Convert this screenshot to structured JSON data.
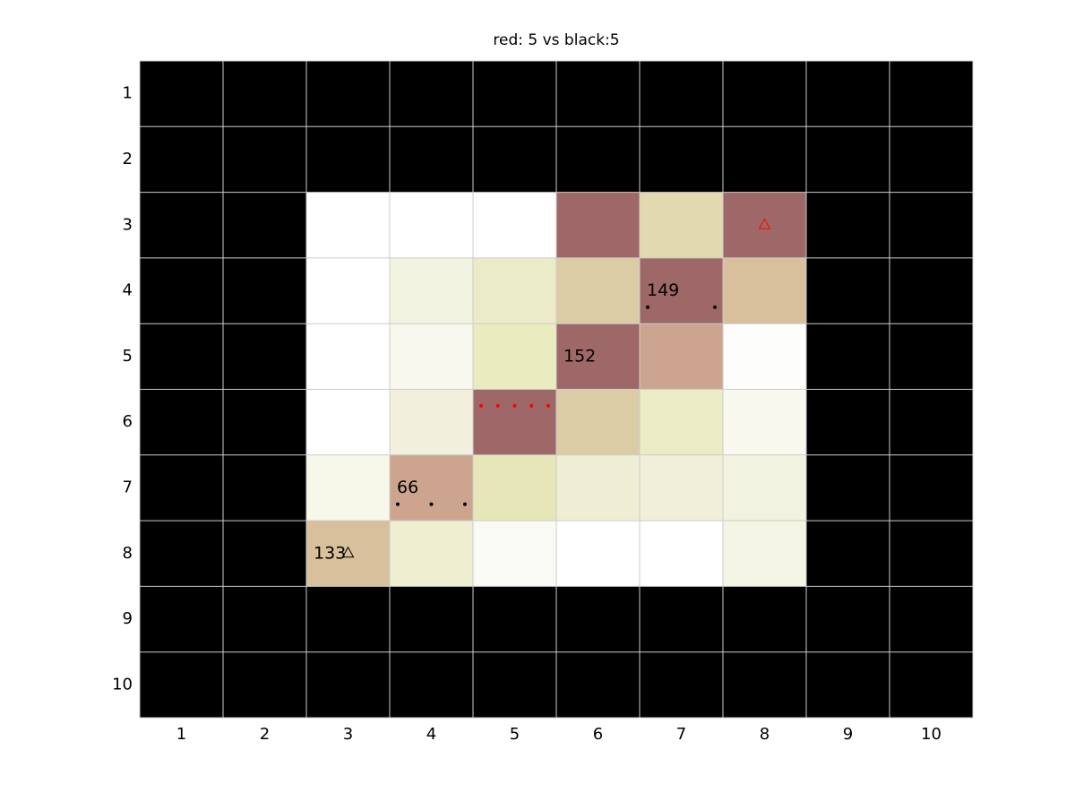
{
  "title": "red: 5 vs black:5",
  "xticks": [
    1,
    2,
    3,
    4,
    5,
    6,
    7,
    8,
    9,
    10
  ],
  "yticks": [
    1,
    2,
    3,
    4,
    5,
    6,
    7,
    8,
    9,
    10
  ],
  "grid_color": "#cccccc",
  "board": [
    [
      "#000000",
      "#000000",
      "#000000",
      "#000000",
      "#000000",
      "#000000",
      "#000000",
      "#000000",
      "#000000",
      "#000000"
    ],
    [
      "#000000",
      "#000000",
      "#000000",
      "#000000",
      "#000000",
      "#000000",
      "#000000",
      "#000000",
      "#000000",
      "#000000"
    ],
    [
      "#000000",
      "#000000",
      "#ffffff",
      "#ffffff",
      "#ffffff",
      "#9e6868",
      "#e3d9b0",
      "#9e6868",
      "#000000",
      "#000000"
    ],
    [
      "#000000",
      "#000000",
      "#ffffff",
      "#f3f3e2",
      "#ebebc8",
      "#dccca6",
      "#9e6868",
      "#d7c09b",
      "#000000",
      "#000000"
    ],
    [
      "#000000",
      "#000000",
      "#ffffff",
      "#f8f8ee",
      "#ebebc0",
      "#9e6868",
      "#cda58f",
      "#fdfdfb",
      "#000000",
      "#000000"
    ],
    [
      "#000000",
      "#000000",
      "#ffffff",
      "#f2f0dc",
      "#9e6868",
      "#dccca6",
      "#ebebc6",
      "#f8f8ee",
      "#000000",
      "#000000"
    ],
    [
      "#000000",
      "#000000",
      "#f7f7ea",
      "#cda58f",
      "#e6e6b9",
      "#eeeed4",
      "#f0f0da",
      "#f2f2e0",
      "#000000",
      "#000000"
    ],
    [
      "#000000",
      "#000000",
      "#d7c09b",
      "#eeeed0",
      "#fafaf4",
      "#ffffff",
      "#ffffff",
      "#f5f5e6",
      "#000000",
      "#000000"
    ],
    [
      "#000000",
      "#000000",
      "#000000",
      "#000000",
      "#000000",
      "#000000",
      "#000000",
      "#000000",
      "#000000",
      "#000000"
    ],
    [
      "#000000",
      "#000000",
      "#000000",
      "#000000",
      "#000000",
      "#000000",
      "#000000",
      "#000000",
      "#000000",
      "#000000"
    ]
  ],
  "cell_labels": [
    {
      "row": 4,
      "col": 7,
      "text": 149
    },
    {
      "row": 5,
      "col": 6,
      "text": 152
    },
    {
      "row": 7,
      "col": 4,
      "text": 66
    },
    {
      "row": 8,
      "col": 3,
      "text": 133
    }
  ],
  "pieces": [
    {
      "row": 4,
      "col": 7,
      "color": "#000000",
      "count": 2
    },
    {
      "row": 7,
      "col": 4,
      "color": "#000000",
      "count": 3
    },
    {
      "row": 6,
      "col": 5,
      "color": "#ff0000",
      "count": 5
    }
  ],
  "triangles": [
    {
      "row": 3,
      "col": 8,
      "color": "#ff0000"
    },
    {
      "row": 8,
      "col": 3,
      "color": "#000000"
    }
  ]
}
